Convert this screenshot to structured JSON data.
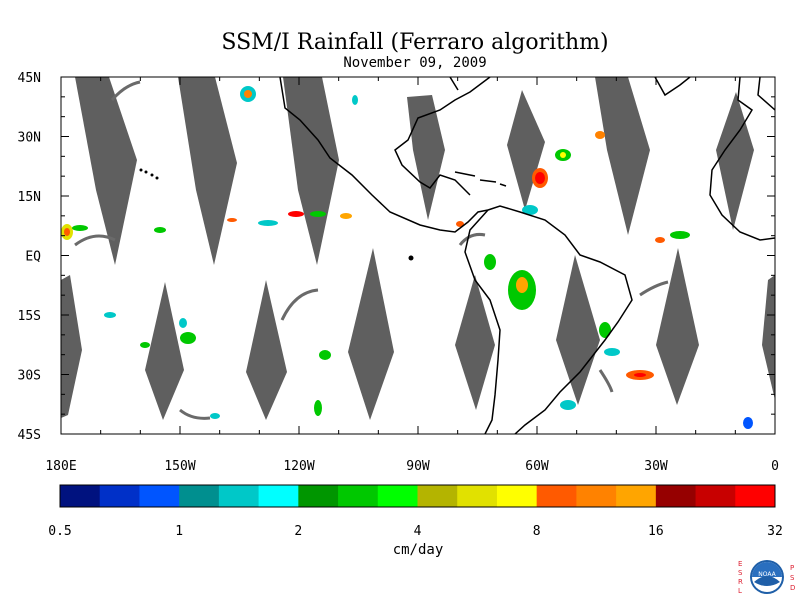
{
  "title": "SSM/I Rainfall (Ferraro algorithm)",
  "date": "November 09, 2009",
  "map": {
    "lat_labels": [
      "45N",
      "30N",
      "15N",
      "EQ",
      "15S",
      "30S",
      "45S"
    ],
    "lon_labels": [
      "180E",
      "150W",
      "120W",
      "90W",
      "60W",
      "30W",
      "0"
    ],
    "swath_color": "#5f5f5f",
    "coast_color": "#000000"
  },
  "colorbar": {
    "unit": "cm/day",
    "tick_labels": [
      "0.5",
      "1",
      "2",
      "4",
      "8",
      "16",
      "32"
    ],
    "colors": [
      "#00127f",
      "#0030c8",
      "#0055ff",
      "#008f8f",
      "#00c8c8",
      "#00ffff",
      "#009600",
      "#00c800",
      "#00ff00",
      "#b4b400",
      "#e1e100",
      "#ffff00",
      "#ff5a00",
      "#ff8200",
      "#ffa500",
      "#960000",
      "#c80000",
      "#ff0000"
    ]
  },
  "logo": {
    "left_text": "ESRL",
    "right_text": "PSD",
    "center_text": "NOAA"
  }
}
